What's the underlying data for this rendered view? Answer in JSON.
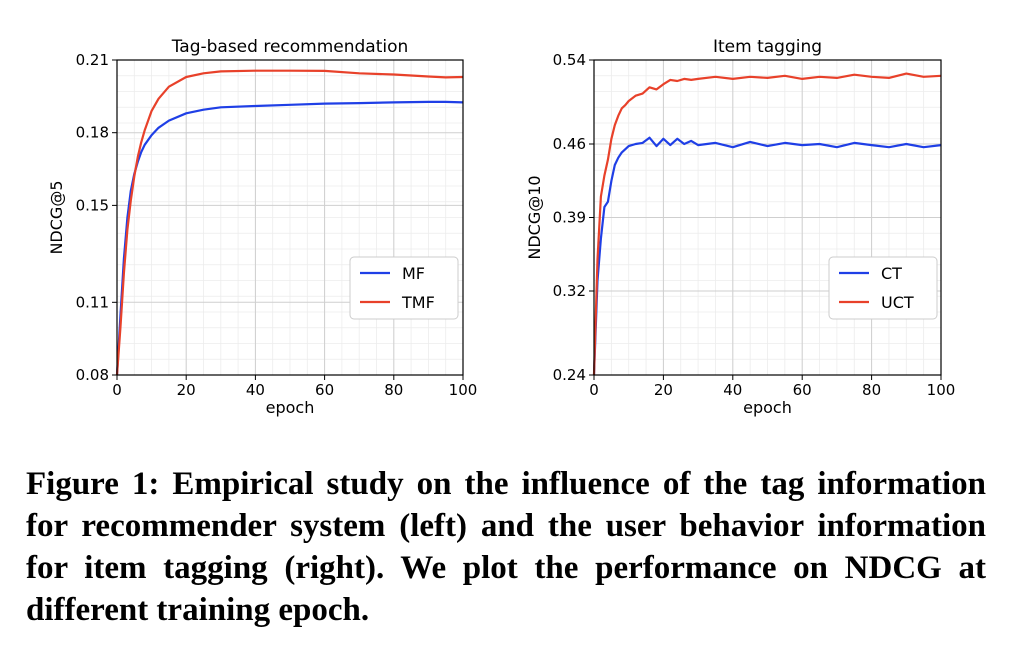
{
  "chart_data": [
    {
      "type": "line",
      "title": "Tag-based recommendation",
      "xlabel": "epoch",
      "ylabel": "NDCG@5",
      "xlim": [
        0,
        100
      ],
      "ylim": [
        0.08,
        0.21
      ],
      "xticks": [
        0,
        20,
        40,
        60,
        80,
        100
      ],
      "yticks": [
        0.08,
        0.11,
        0.15,
        0.18,
        0.21
      ],
      "xtick_labels": [
        "0",
        "20",
        "40",
        "60",
        "80",
        "100"
      ],
      "ytick_labels": [
        "0.08",
        "0.11",
        "0.15",
        "0.18",
        "0.21"
      ],
      "grid": true,
      "legend_position": "lower-right",
      "x": [
        0,
        1,
        2,
        3,
        4,
        5,
        6,
        7,
        8,
        10,
        12,
        15,
        20,
        25,
        30,
        40,
        50,
        60,
        70,
        80,
        90,
        95,
        100
      ],
      "series": [
        {
          "name": "MF",
          "color": "#1f3fe6",
          "values": [
            0.08,
            0.105,
            0.128,
            0.145,
            0.156,
            0.163,
            0.168,
            0.172,
            0.175,
            0.179,
            0.182,
            0.185,
            0.188,
            0.1895,
            0.1905,
            0.191,
            0.1915,
            0.192,
            0.1922,
            0.1925,
            0.1927,
            0.1927,
            0.1925
          ]
        },
        {
          "name": "TMF",
          "color": "#e8412a",
          "values": [
            0.08,
            0.1,
            0.122,
            0.14,
            0.152,
            0.162,
            0.17,
            0.176,
            0.181,
            0.189,
            0.194,
            0.199,
            0.203,
            0.2045,
            0.2053,
            0.2056,
            0.2056,
            0.2055,
            0.2045,
            0.204,
            0.2032,
            0.2028,
            0.203
          ]
        }
      ]
    },
    {
      "type": "line",
      "title": "Item tagging",
      "xlabel": "epoch",
      "ylabel": "NDCG@10",
      "xlim": [
        0,
        100
      ],
      "ylim": [
        0.24,
        0.54
      ],
      "xticks": [
        0,
        20,
        40,
        60,
        80,
        100
      ],
      "yticks": [
        0.24,
        0.32,
        0.39,
        0.46,
        0.54
      ],
      "xtick_labels": [
        "0",
        "20",
        "40",
        "60",
        "80",
        "100"
      ],
      "ytick_labels": [
        "0.24",
        "0.32",
        "0.39",
        "0.46",
        "0.54"
      ],
      "grid": true,
      "legend_position": "lower-right",
      "x": [
        0,
        1,
        2,
        3,
        4,
        5,
        6,
        7,
        8,
        9,
        10,
        12,
        14,
        16,
        18,
        20,
        22,
        24,
        26,
        28,
        30,
        35,
        40,
        45,
        50,
        55,
        60,
        65,
        70,
        75,
        80,
        85,
        90,
        95,
        100
      ],
      "series": [
        {
          "name": "CT",
          "color": "#1f3fe6",
          "values": [
            0.24,
            0.33,
            0.37,
            0.4,
            0.405,
            0.425,
            0.44,
            0.447,
            0.452,
            0.455,
            0.458,
            0.46,
            0.461,
            0.466,
            0.458,
            0.465,
            0.459,
            0.465,
            0.46,
            0.463,
            0.459,
            0.461,
            0.457,
            0.462,
            0.458,
            0.461,
            0.459,
            0.46,
            0.457,
            0.461,
            0.459,
            0.457,
            0.46,
            0.457,
            0.459
          ]
        },
        {
          "name": "UCT",
          "color": "#e8412a",
          "values": [
            0.24,
            0.35,
            0.41,
            0.43,
            0.445,
            0.465,
            0.478,
            0.487,
            0.494,
            0.497,
            0.501,
            0.506,
            0.508,
            0.514,
            0.512,
            0.517,
            0.521,
            0.52,
            0.522,
            0.521,
            0.522,
            0.524,
            0.522,
            0.524,
            0.523,
            0.525,
            0.522,
            0.524,
            0.523,
            0.526,
            0.524,
            0.523,
            0.527,
            0.524,
            0.525
          ]
        }
      ]
    }
  ],
  "caption": "Figure 1: Empirical study on the influence of the tag information for recommender system (left) and the user behavior information for item tagging (right). We plot the performance on NDCG at different training epoch."
}
